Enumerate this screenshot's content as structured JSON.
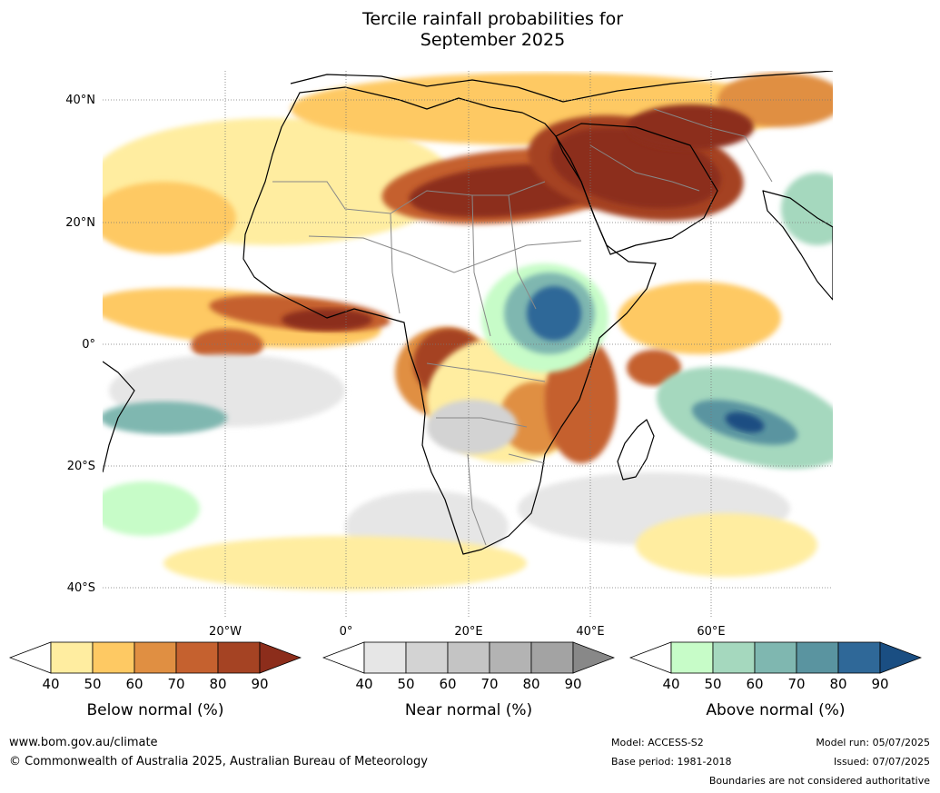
{
  "title": {
    "line1": "Tercile rainfall probabilities for",
    "line2": "September 2025"
  },
  "map": {
    "lat_labels": [
      "40°N",
      "20°N",
      "0°",
      "20°S",
      "40°S"
    ],
    "lon_labels": [
      "20°W",
      "0°",
      "20°E",
      "40°E",
      "60°E"
    ],
    "colors": {
      "below": [
        "#ffeda0",
        "#fec963",
        "#e08f42",
        "#c5612f",
        "#a54323",
        "#8c2d1b"
      ],
      "near": [
        "#e6e6e6",
        "#d3d3d3",
        "#c4c4c4",
        "#b3b3b3",
        "#a3a3a3",
        "#888888"
      ],
      "above": [
        "#c7fcc8",
        "#a5d8be",
        "#7fb7b0",
        "#5a94a0",
        "#2f6898",
        "#1a4e82"
      ]
    }
  },
  "legends": [
    {
      "key": "below",
      "ticks": [
        "40",
        "50",
        "60",
        "70",
        "80",
        "90"
      ],
      "label": "Below normal (%)"
    },
    {
      "key": "near",
      "ticks": [
        "40",
        "50",
        "60",
        "70",
        "80",
        "90"
      ],
      "label": "Near normal (%)"
    },
    {
      "key": "above",
      "ticks": [
        "40",
        "50",
        "60",
        "70",
        "80",
        "90"
      ],
      "label": "Above normal (%)"
    }
  ],
  "footer": {
    "website": "www.bom.gov.au/climate",
    "copyright": "© Commonwealth of Australia 2025, Australian Bureau of Meteorology",
    "model": "Model: ACCESS-S2",
    "base_period": "Base period: 1981-2018",
    "model_run": "Model run: 05/07/2025",
    "issued": "Issued: 07/07/2025",
    "disclaimer": "Boundaries are not considered authoritative"
  }
}
